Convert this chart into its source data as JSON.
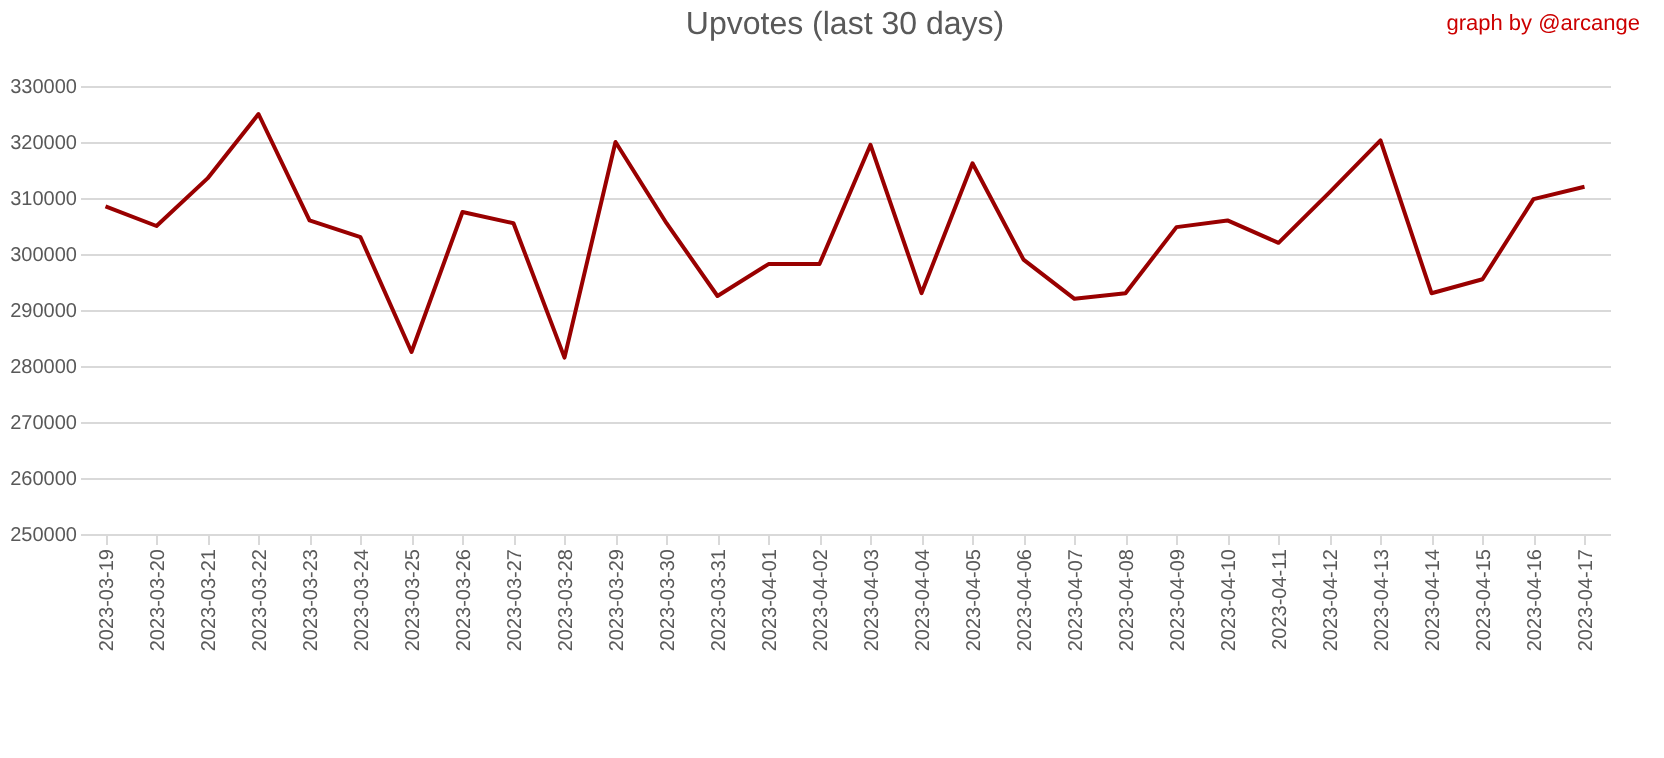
{
  "chart_data": {
    "type": "line",
    "title": "Upvotes (last 30 days)",
    "annotations": [
      "graph by @arcange"
    ],
    "categories": [
      "2023-03-19",
      "2023-03-20",
      "2023-03-21",
      "2023-03-22",
      "2023-03-23",
      "2023-03-24",
      "2023-03-25",
      "2023-03-26",
      "2023-03-27",
      "2023-03-28",
      "2023-03-29",
      "2023-03-30",
      "2023-03-31",
      "2023-04-01",
      "2023-04-02",
      "2023-04-03",
      "2023-04-04",
      "2023-04-05",
      "2023-04-06",
      "2023-04-07",
      "2023-04-08",
      "2023-04-09",
      "2023-04-10",
      "2023-04-11",
      "2023-04-12",
      "2023-04-13",
      "2023-04-14",
      "2023-04-15",
      "2023-04-16",
      "2023-04-17"
    ],
    "series": [
      {
        "color": "#990000",
        "values": [
          308500,
          305000,
          313500,
          325000,
          306000,
          303000,
          282500,
          307500,
          305500,
          281500,
          320000,
          305500,
          292500,
          298200,
          298200,
          319500,
          293000,
          316200,
          299000,
          292000,
          293000,
          304800,
          306000,
          302000,
          311000,
          320300,
          293000,
          295500,
          309800,
          312000
        ]
      }
    ],
    "ylim": [
      250000,
      330000
    ],
    "yticks": [
      250000,
      260000,
      270000,
      280000,
      290000,
      300000,
      310000,
      320000,
      330000
    ],
    "grid": "y",
    "legend": false,
    "marker": "none",
    "line_style": "solid"
  }
}
